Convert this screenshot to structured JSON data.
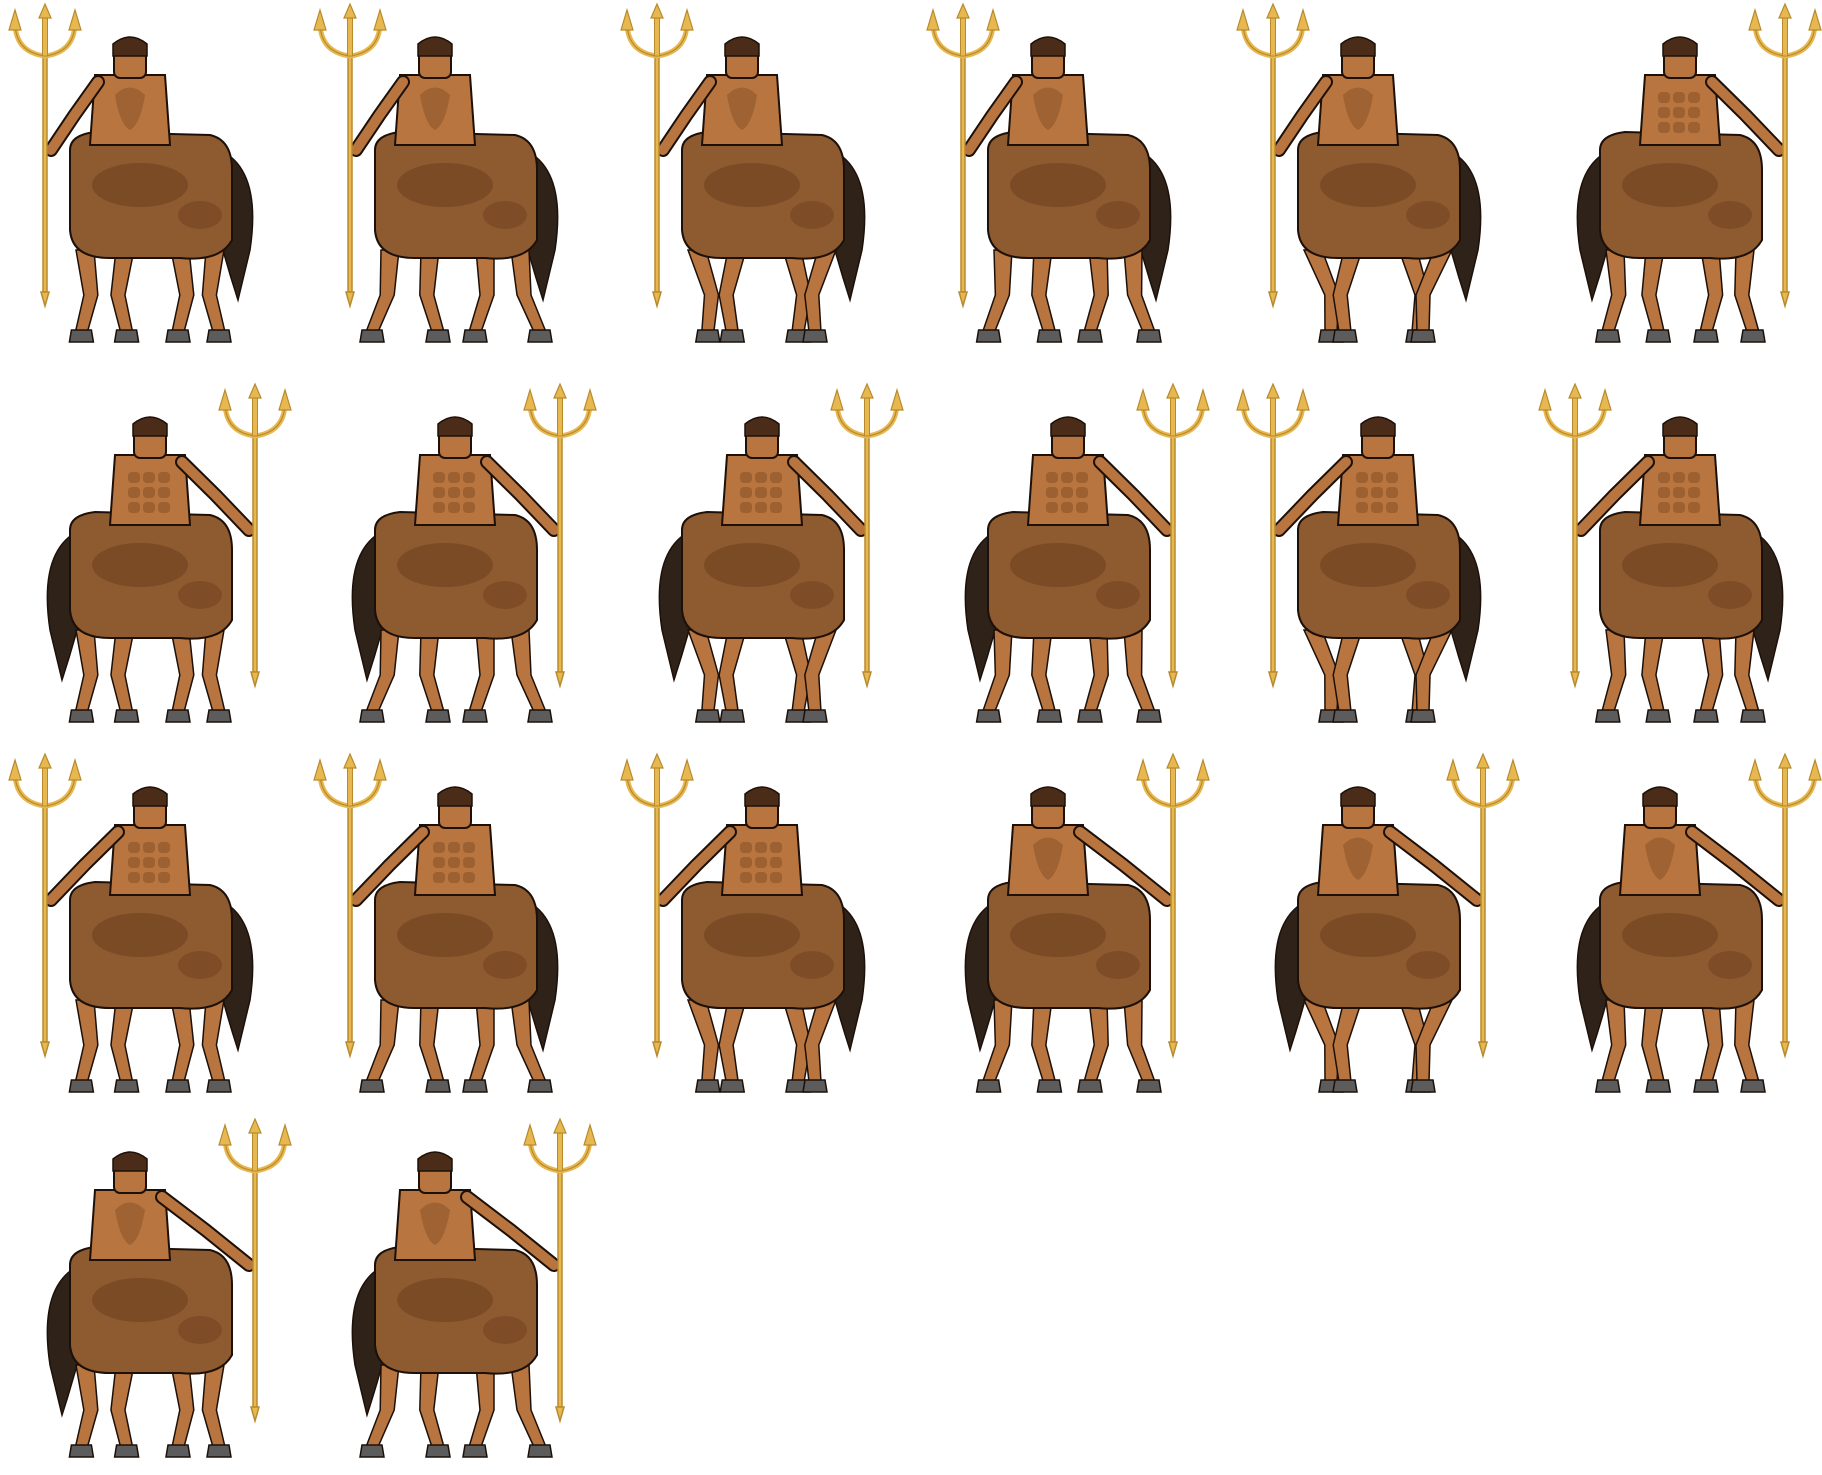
{
  "sheet": {
    "background_color": "#ffffff",
    "sprite_name": "centaur-with-trident",
    "colors": {
      "skin": "#b8753f",
      "skin_dark": "#8a5228",
      "horse_body": "#8e5a30",
      "horse_dark": "#6b3f1f",
      "tail": "#2e2219",
      "hoof": "#5c5c5c",
      "trident": "#e8b850",
      "trident_dark": "#b88a2e",
      "hair": "#4a2c18",
      "outline": "#1c1009"
    },
    "frames": [
      {
        "row": 1,
        "pose": "back-left",
        "tail": "right",
        "trident": "left"
      },
      {
        "row": 1,
        "pose": "back-left",
        "tail": "right",
        "trident": "left"
      },
      {
        "row": 1,
        "pose": "back-left",
        "tail": "right",
        "trident": "left"
      },
      {
        "row": 1,
        "pose": "back-left",
        "tail": "right",
        "trident": "left"
      },
      {
        "row": 1,
        "pose": "back-left",
        "tail": "right",
        "trident": "left"
      },
      {
        "row": 1,
        "pose": "front-right",
        "tail": "left",
        "trident": "right"
      },
      {
        "row": 2,
        "pose": "front-right",
        "tail": "left",
        "trident": "right"
      },
      {
        "row": 2,
        "pose": "front-right",
        "tail": "left",
        "trident": "right"
      },
      {
        "row": 2,
        "pose": "front-right",
        "tail": "left",
        "trident": "right"
      },
      {
        "row": 2,
        "pose": "front-right",
        "tail": "left",
        "trident": "right"
      },
      {
        "row": 2,
        "pose": "front-left",
        "tail": "right",
        "trident": "left"
      },
      {
        "row": 2,
        "pose": "front-left",
        "tail": "right",
        "trident": "left"
      },
      {
        "row": 3,
        "pose": "front-left",
        "tail": "right",
        "trident": "left"
      },
      {
        "row": 3,
        "pose": "front-left",
        "tail": "right",
        "trident": "left"
      },
      {
        "row": 3,
        "pose": "front-left",
        "tail": "right",
        "trident": "left"
      },
      {
        "row": 3,
        "pose": "back-right",
        "tail": "left",
        "trident": "right"
      },
      {
        "row": 3,
        "pose": "back-right",
        "tail": "left",
        "trident": "right"
      },
      {
        "row": 3,
        "pose": "back-right",
        "tail": "left",
        "trident": "right"
      },
      {
        "row": 4,
        "pose": "back-right",
        "tail": "left",
        "trident": "right"
      },
      {
        "row": 4,
        "pose": "back-right",
        "tail": "left",
        "trident": "right"
      }
    ]
  }
}
